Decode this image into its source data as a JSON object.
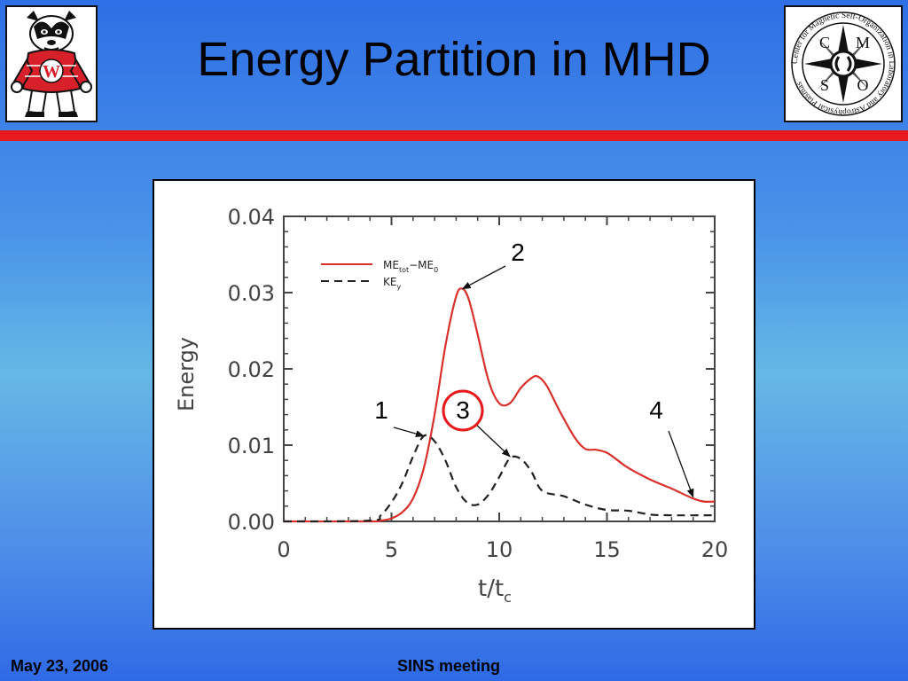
{
  "slide": {
    "title": "Energy Partition in MHD"
  },
  "footer": {
    "date": "May 23, 2006",
    "meeting": "SINS meeting"
  },
  "logos": {
    "left": {
      "icon": "badger-mascot-icon",
      "letter": "W"
    },
    "right": {
      "icon": "cmso-compass-icon",
      "letters": [
        "C",
        "M",
        "S",
        "O"
      ],
      "ring_text": "Center for Magnetic Self-Organization in Laboratory and Astrophysical Plasmas"
    }
  },
  "colors": {
    "red_bar": "#e8191c",
    "me_series": "#d9302c",
    "ke_series": "#222222",
    "annotation_circle": "#e8191c"
  },
  "chart_data": {
    "type": "line",
    "xlabel": "t/t",
    "xlabel_sub": "c",
    "ylabel": "Energy",
    "xlim": [
      0,
      20
    ],
    "ylim": [
      0,
      0.04
    ],
    "xticks": [
      "0",
      "5",
      "10",
      "15",
      "20"
    ],
    "yticks": [
      "0.00",
      "0.01",
      "0.02",
      "0.03",
      "0.04"
    ],
    "legend_position": "top-left",
    "series": [
      {
        "name": "ME_tot - ME_0",
        "legend_main": "ME",
        "legend_sub1": "tot",
        "legend_mid": "−ME",
        "legend_sub2": "0",
        "style": "solid",
        "color": "#d9302c",
        "x": [
          0,
          4.0,
          4.5,
          5.0,
          5.5,
          6.0,
          6.5,
          7.0,
          7.5,
          8.0,
          8.3,
          8.6,
          9.0,
          9.5,
          10.0,
          10.5,
          11.0,
          11.5,
          11.8,
          12.2,
          12.8,
          13.5,
          14.0,
          14.5,
          15.0,
          15.5,
          16.0,
          17.0,
          18.0,
          19.0,
          19.5,
          20.0
        ],
        "y": [
          0,
          0,
          0.0001,
          0.0004,
          0.0012,
          0.003,
          0.007,
          0.014,
          0.023,
          0.0295,
          0.0305,
          0.029,
          0.0245,
          0.0185,
          0.0155,
          0.0155,
          0.0175,
          0.0188,
          0.019,
          0.0178,
          0.0145,
          0.011,
          0.0095,
          0.0094,
          0.009,
          0.008,
          0.007,
          0.0055,
          0.0043,
          0.003,
          0.0026,
          0.0026
        ]
      },
      {
        "name": "KE_y",
        "legend_main": "KE",
        "legend_sub1": "y",
        "style": "dashed",
        "color": "#222222",
        "x": [
          0,
          4.0,
          4.5,
          5.0,
          5.5,
          6.0,
          6.5,
          7.0,
          7.5,
          8.0,
          8.5,
          9.0,
          9.5,
          10.0,
          10.5,
          11.0,
          11.5,
          12.0,
          13.0,
          14.0,
          15.0,
          16.0,
          17.0,
          18.0,
          20.0
        ],
        "y": [
          0,
          0.0001,
          0.0008,
          0.0025,
          0.005,
          0.0085,
          0.0112,
          0.0105,
          0.008,
          0.0045,
          0.0025,
          0.0022,
          0.0035,
          0.0058,
          0.0083,
          0.0082,
          0.0065,
          0.004,
          0.0033,
          0.0022,
          0.0015,
          0.0014,
          0.0009,
          0.0008,
          0.0008
        ]
      }
    ],
    "annotations": [
      {
        "label": "1",
        "circled": false,
        "target": [
          6.5,
          0.0112
        ]
      },
      {
        "label": "2",
        "circled": false,
        "target": [
          8.3,
          0.0305
        ]
      },
      {
        "label": "3",
        "circled": true,
        "target": [
          10.5,
          0.0085
        ]
      },
      {
        "label": "4",
        "circled": false,
        "target": [
          19.0,
          0.0032
        ]
      }
    ]
  }
}
